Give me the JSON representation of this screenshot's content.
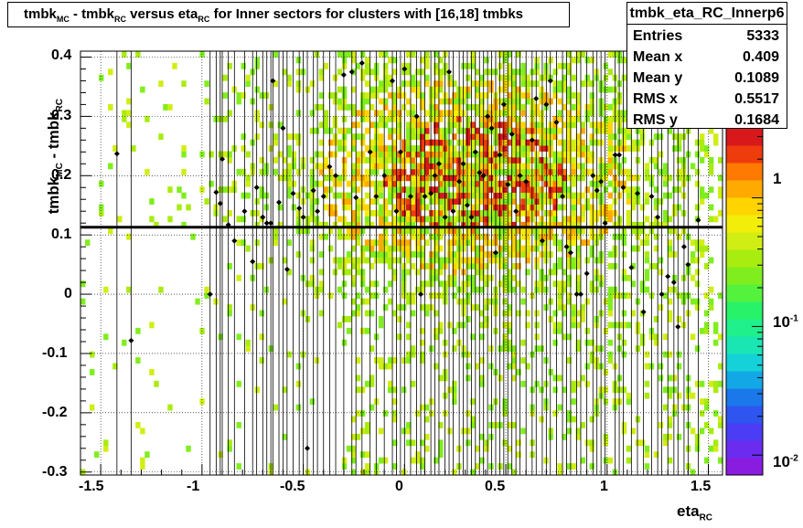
{
  "title": {
    "part1": "tmbk",
    "sub1": "MC",
    "part2": " - tmbk",
    "sub2": "RC",
    "part3": " versus eta",
    "sub3": "RC",
    "part4": " for Inner sectors for clusters with [16,18] tmbks"
  },
  "stats": {
    "name": "tmbk_eta_RC_Innerp6",
    "rows": [
      {
        "label": "Entries",
        "value": "5333"
      },
      {
        "label": "Mean x",
        "value": "0.409"
      },
      {
        "label": "Mean y",
        "value": "0.1089"
      },
      {
        "label": "RMS x",
        "value": "0.5517"
      },
      {
        "label": "RMS y",
        "value": "0.1684"
      }
    ]
  },
  "axes": {
    "xlabel": "eta",
    "xlabel_sub": "RC",
    "ylabel": "tmbk",
    "ylabel_sub1": "MC",
    "ylabel_mid": " - tmbk",
    "ylabel_sub2": "RC",
    "xticks": [
      "-1.5",
      "-1",
      "-0.5",
      "0",
      "0.5",
      "1",
      "1.5"
    ],
    "yticks": [
      "-0.3",
      "-0.2",
      "-0.1",
      "0",
      "0.1",
      "0.2",
      "0.3",
      "0.4"
    ],
    "zticks": [
      {
        "base": "1",
        "exp": ""
      },
      {
        "base": "10",
        "exp": "-1"
      },
      {
        "base": "10",
        "exp": "-2"
      }
    ]
  },
  "chart_data": {
    "type": "heatmap",
    "xlim": [
      -1.6,
      1.57
    ],
    "ylim": [
      -0.305,
      0.41
    ],
    "zscale": "log",
    "zlim": [
      0.007,
      3.5
    ],
    "grid": true,
    "fit_line_y": 0.113,
    "profile_points": [
      [
        -1.42,
        0.237
      ],
      [
        -1.35,
        -0.078
      ],
      [
        -0.96,
        0.0
      ],
      [
        -0.93,
        0.172
      ],
      [
        -0.91,
        0.153
      ],
      [
        -0.9,
        0.228
      ],
      [
        -0.87,
        0.117
      ],
      [
        -0.84,
        0.09
      ],
      [
        -0.79,
        0.14
      ],
      [
        -0.75,
        0.055
      ],
      [
        -0.73,
        0.18
      ],
      [
        -0.7,
        0.13
      ],
      [
        -0.68,
        0.12
      ],
      [
        -0.66,
        0.12
      ],
      [
        -0.65,
        0.36
      ],
      [
        -0.62,
        0.155
      ],
      [
        -0.6,
        0.28
      ],
      [
        -0.58,
        0.042
      ],
      [
        -0.55,
        0.17
      ],
      [
        -0.52,
        0.145
      ],
      [
        -0.5,
        0.13
      ],
      [
        -0.48,
        -0.26
      ],
      [
        -0.45,
        0.175
      ],
      [
        -0.43,
        0.14
      ],
      [
        -0.4,
        0.165
      ],
      [
        -0.37,
        0.215
      ],
      [
        -0.34,
        0.2
      ],
      [
        -0.3,
        0.37
      ],
      [
        -0.26,
        0.375
      ],
      [
        -0.24,
        0.163
      ],
      [
        -0.21,
        0.39
      ],
      [
        -0.17,
        0.24
      ],
      [
        -0.14,
        0.165
      ],
      [
        -0.1,
        0.2
      ],
      [
        -0.06,
        0.36
      ],
      [
        -0.04,
        0.14
      ],
      [
        -0.02,
        0.24
      ],
      [
        0.0,
        0.38
      ],
      [
        0.03,
        0.165
      ],
      [
        0.06,
        0.3
      ],
      [
        0.08,
        0.0
      ],
      [
        0.1,
        0.165
      ],
      [
        0.13,
        0.17
      ],
      [
        0.15,
        0.2
      ],
      [
        0.17,
        0.22
      ],
      [
        0.2,
        0.13
      ],
      [
        0.22,
        0.375
      ],
      [
        0.24,
        0.14
      ],
      [
        0.27,
        0.19
      ],
      [
        0.29,
        0.22
      ],
      [
        0.31,
        0.15
      ],
      [
        0.33,
        0.13
      ],
      [
        0.35,
        0.24
      ],
      [
        0.37,
        0.205
      ],
      [
        0.39,
        0.2
      ],
      [
        0.41,
        0.3
      ],
      [
        0.43,
        0.28
      ],
      [
        0.45,
        0.07
      ],
      [
        0.47,
        0.235
      ],
      [
        0.49,
        0.32
      ],
      [
        0.51,
        0.185
      ],
      [
        0.53,
        0.27
      ],
      [
        0.55,
        0.14
      ],
      [
        0.57,
        0.2
      ],
      [
        0.6,
        0.19
      ],
      [
        0.63,
        0.26
      ],
      [
        0.65,
        0.33
      ],
      [
        0.68,
        0.09
      ],
      [
        0.7,
        0.32
      ],
      [
        0.72,
        0.36
      ],
      [
        0.75,
        0.29
      ],
      [
        0.78,
        0.165
      ],
      [
        0.8,
        0.08
      ],
      [
        0.82,
        0.07
      ],
      [
        0.85,
        0.0
      ],
      [
        0.87,
        0.0
      ],
      [
        0.9,
        0.035
      ],
      [
        0.93,
        0.2
      ],
      [
        0.95,
        0.175
      ],
      [
        0.97,
        0.19
      ],
      [
        0.99,
        0.12
      ],
      [
        1.04,
        0.235
      ],
      [
        1.06,
        0.235
      ],
      [
        1.08,
        0.18
      ],
      [
        1.12,
        0.045
      ],
      [
        1.15,
        0.17
      ],
      [
        1.18,
        -0.03
      ],
      [
        1.22,
        0.165
      ],
      [
        1.25,
        0.13
      ],
      [
        1.27,
        0.0
      ],
      [
        1.3,
        0.03
      ],
      [
        1.33,
        0.02
      ],
      [
        1.35,
        -0.055
      ],
      [
        1.38,
        0.08
      ],
      [
        1.4,
        0.05
      ],
      [
        1.45,
        0.125
      ]
    ]
  },
  "colors": {
    "palette": [
      "#8a1ce0",
      "#6b2cf0",
      "#4a3df5",
      "#2f55f0",
      "#1a78ea",
      "#12a8e6",
      "#14d2d8",
      "#1ae6b4",
      "#20f08c",
      "#28f268",
      "#54f23c",
      "#80ee1e",
      "#a8ec10",
      "#d0ee14",
      "#f2ee0a",
      "#ffd400",
      "#ffaa00",
      "#ff7a00",
      "#ee3c0c",
      "#d8181a"
    ],
    "fit_line": "#000000",
    "grid": "#000000",
    "frame": "#000000"
  }
}
